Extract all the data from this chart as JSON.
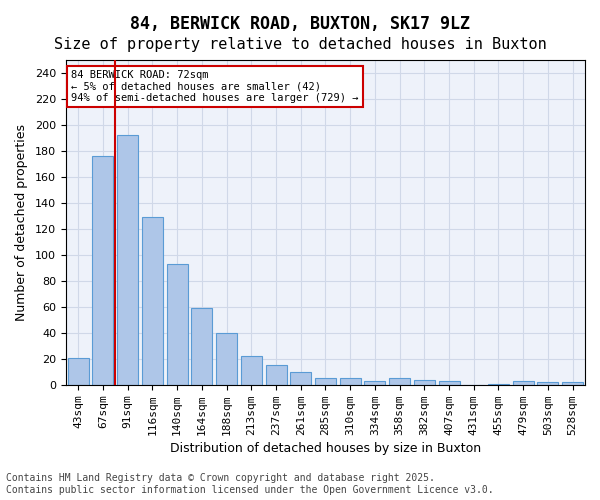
{
  "title1": "84, BERWICK ROAD, BUXTON, SK17 9LZ",
  "title2": "Size of property relative to detached houses in Buxton",
  "xlabel": "Distribution of detached houses by size in Buxton",
  "ylabel": "Number of detached properties",
  "categories": [
    "43sqm",
    "67sqm",
    "91sqm",
    "116sqm",
    "140sqm",
    "164sqm",
    "188sqm",
    "213sqm",
    "237sqm",
    "261sqm",
    "285sqm",
    "310sqm",
    "334sqm",
    "358sqm",
    "382sqm",
    "407sqm",
    "431sqm",
    "455sqm",
    "479sqm",
    "503sqm",
    "528sqm"
  ],
  "values": [
    21,
    176,
    192,
    129,
    93,
    59,
    40,
    22,
    15,
    10,
    5,
    5,
    3,
    5,
    4,
    3,
    0,
    1,
    3,
    2,
    2
  ],
  "bar_color": "#aec6e8",
  "bar_edge_color": "#5a9bd5",
  "vline_x": 1.5,
  "vline_color": "#cc0000",
  "annotation_text": "84 BERWICK ROAD: 72sqm\n← 5% of detached houses are smaller (42)\n94% of semi-detached houses are larger (729) →",
  "annotation_box_color": "#cc0000",
  "ylim": [
    0,
    250
  ],
  "yticks": [
    0,
    20,
    40,
    60,
    80,
    100,
    120,
    140,
    160,
    180,
    200,
    220,
    240
  ],
  "grid_color": "#d0d8e8",
  "bg_color": "#eef2fa",
  "footer": "Contains HM Land Registry data © Crown copyright and database right 2025.\nContains public sector information licensed under the Open Government Licence v3.0.",
  "title_fontsize": 12,
  "subtitle_fontsize": 11,
  "axis_label_fontsize": 9,
  "tick_fontsize": 8,
  "footer_fontsize": 7
}
